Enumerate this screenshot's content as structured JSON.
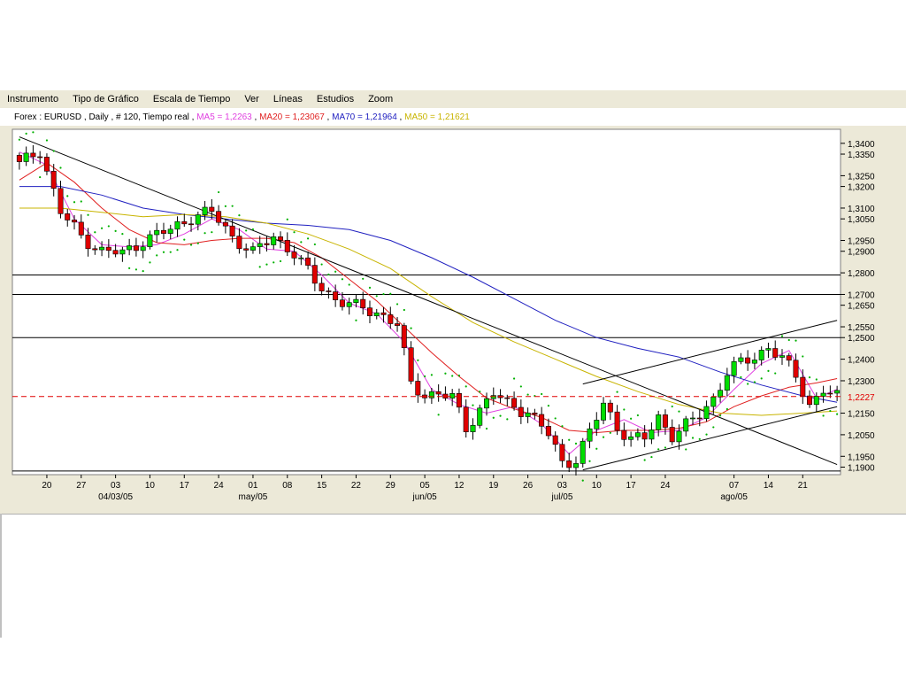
{
  "menu": [
    "Instrumento",
    "Tipo de Gráfico",
    "Escala de Tiempo",
    "Ver",
    "Líneas",
    "Estudios",
    "Zoom"
  ],
  "info": {
    "instrument": "Forex : EURUSD , Daily , # 120, Tiempo real",
    "ma5": "MA5 = 1,2263",
    "ma20": "MA20 = 1,23067",
    "ma70": "MA70 = 1,21964",
    "ma50": "MA50 = 1,21621",
    "colors": {
      "ma5": "#e040e0",
      "ma20": "#e02020",
      "ma70": "#2020c0",
      "ma50": "#c8b400"
    }
  },
  "chart_data": {
    "type": "candlestick",
    "ylim": [
      1.1865,
      1.3465
    ],
    "y_ticks": [
      "1,3400",
      "1,3350",
      "1,3250",
      "1,3200",
      "1,3100",
      "1,3050",
      "1,2950",
      "1,2900",
      "1,2800",
      "1,2700",
      "1,2650",
      "1,2550",
      "1,2500",
      "1,2400",
      "1,2300",
      "1,2150",
      "1,2050",
      "1,1950",
      "1,1900"
    ],
    "y_tick_values": [
      1.34,
      1.335,
      1.325,
      1.32,
      1.31,
      1.305,
      1.295,
      1.29,
      1.28,
      1.27,
      1.265,
      1.255,
      1.25,
      1.24,
      1.23,
      1.215,
      1.205,
      1.195,
      1.19
    ],
    "x_day_labels": [
      "20",
      "27",
      "03",
      "10",
      "17",
      "24",
      "01",
      "08",
      "15",
      "22",
      "29",
      "05",
      "12",
      "19",
      "26",
      "03",
      "10",
      "17",
      "24",
      "07",
      "14",
      "21"
    ],
    "x_day_index": [
      4,
      9,
      14,
      19,
      24,
      29,
      34,
      39,
      44,
      49,
      54,
      59,
      64,
      69,
      74,
      79,
      84,
      89,
      94,
      104,
      109,
      114
    ],
    "x_month_labels": [
      "04/03/05",
      "may/05",
      "jun/05",
      "jul/05",
      "ago/05"
    ],
    "x_month_index": [
      14,
      34,
      59,
      79,
      104
    ],
    "n_bars": 120,
    "last_price": "1,2227",
    "last_price_value": 1.2227,
    "horizontal_lines": [
      1.279,
      1.27,
      1.25,
      1.1882
    ],
    "trend_lines": [
      {
        "from": [
          0,
          1.343
        ],
        "to": [
          119,
          1.1912
        ]
      },
      {
        "from": [
          82,
          1.2285
        ],
        "to": [
          119,
          1.258
        ]
      },
      {
        "from": [
          82,
          1.1887
        ],
        "to": [
          119,
          1.218
        ]
      }
    ],
    "anchors": [
      [
        0,
        1.33
      ],
      [
        3,
        1.337
      ],
      [
        6,
        1.308
      ],
      [
        9,
        1.297
      ],
      [
        12,
        1.29
      ],
      [
        15,
        1.289
      ],
      [
        18,
        1.295
      ],
      [
        22,
        1.3
      ],
      [
        25,
        1.306
      ],
      [
        28,
        1.308
      ],
      [
        31,
        1.297
      ],
      [
        34,
        1.289
      ],
      [
        37,
        1.297
      ],
      [
        40,
        1.289
      ],
      [
        43,
        1.276
      ],
      [
        46,
        1.268
      ],
      [
        49,
        1.264
      ],
      [
        52,
        1.262
      ],
      [
        55,
        1.256
      ],
      [
        57,
        1.228
      ],
      [
        59,
        1.224
      ],
      [
        61,
        1.224
      ],
      [
        63,
        1.222
      ],
      [
        65,
        1.208
      ],
      [
        67,
        1.217
      ],
      [
        69,
        1.224
      ],
      [
        71,
        1.219
      ],
      [
        74,
        1.216
      ],
      [
        77,
        1.205
      ],
      [
        79,
        1.192
      ],
      [
        81,
        1.194
      ],
      [
        83,
        1.206
      ],
      [
        85,
        1.219
      ],
      [
        87,
        1.209
      ],
      [
        89,
        1.203
      ],
      [
        91,
        1.203
      ],
      [
        93,
        1.213
      ],
      [
        95,
        1.205
      ],
      [
        97,
        1.209
      ],
      [
        99,
        1.214
      ],
      [
        101,
        1.222
      ],
      [
        103,
        1.234
      ],
      [
        105,
        1.238
      ],
      [
        107,
        1.241
      ],
      [
        109,
        1.246
      ],
      [
        111,
        1.24
      ],
      [
        113,
        1.232
      ],
      [
        115,
        1.219
      ],
      [
        117,
        1.226
      ],
      [
        119,
        1.222
      ]
    ],
    "ma_series": [
      {
        "name": "MA5",
        "color": "#e040e0",
        "points": [
          [
            0,
            1.336
          ],
          [
            4,
            1.33
          ],
          [
            8,
            1.305
          ],
          [
            12,
            1.293
          ],
          [
            16,
            1.292
          ],
          [
            20,
            1.293
          ],
          [
            24,
            1.298
          ],
          [
            28,
            1.305
          ],
          [
            32,
            1.3
          ],
          [
            36,
            1.291
          ],
          [
            40,
            1.29
          ],
          [
            44,
            1.279
          ],
          [
            48,
            1.266
          ],
          [
            52,
            1.261
          ],
          [
            56,
            1.248
          ],
          [
            60,
            1.226
          ],
          [
            64,
            1.219
          ],
          [
            68,
            1.215
          ],
          [
            72,
            1.218
          ],
          [
            76,
            1.21
          ],
          [
            80,
            1.196
          ],
          [
            84,
            1.207
          ],
          [
            88,
            1.212
          ],
          [
            92,
            1.206
          ],
          [
            96,
            1.207
          ],
          [
            100,
            1.213
          ],
          [
            104,
            1.226
          ],
          [
            108,
            1.238
          ],
          [
            112,
            1.244
          ],
          [
            114,
            1.233
          ],
          [
            116,
            1.222
          ],
          [
            119,
            1.226
          ]
        ]
      },
      {
        "name": "MA20",
        "color": "#e02020",
        "points": [
          [
            0,
            1.323
          ],
          [
            4,
            1.331
          ],
          [
            8,
            1.322
          ],
          [
            12,
            1.31
          ],
          [
            16,
            1.3
          ],
          [
            20,
            1.294
          ],
          [
            24,
            1.293
          ],
          [
            28,
            1.295
          ],
          [
            32,
            1.296
          ],
          [
            36,
            1.296
          ],
          [
            40,
            1.294
          ],
          [
            44,
            1.287
          ],
          [
            48,
            1.277
          ],
          [
            52,
            1.267
          ],
          [
            56,
            1.255
          ],
          [
            60,
            1.243
          ],
          [
            64,
            1.232
          ],
          [
            68,
            1.222
          ],
          [
            72,
            1.217
          ],
          [
            76,
            1.213
          ],
          [
            80,
            1.207
          ],
          [
            84,
            1.206
          ],
          [
            88,
            1.207
          ],
          [
            92,
            1.207
          ],
          [
            96,
            1.208
          ],
          [
            100,
            1.211
          ],
          [
            104,
            1.218
          ],
          [
            108,
            1.223
          ],
          [
            112,
            1.227
          ],
          [
            116,
            1.229
          ],
          [
            119,
            1.231
          ]
        ]
      },
      {
        "name": "MA70",
        "color": "#2020c0",
        "points": [
          [
            0,
            1.32
          ],
          [
            6,
            1.32
          ],
          [
            12,
            1.316
          ],
          [
            18,
            1.31
          ],
          [
            24,
            1.307
          ],
          [
            30,
            1.305
          ],
          [
            36,
            1.303
          ],
          [
            42,
            1.302
          ],
          [
            48,
            1.3
          ],
          [
            54,
            1.295
          ],
          [
            60,
            1.287
          ],
          [
            66,
            1.278
          ],
          [
            72,
            1.268
          ],
          [
            78,
            1.258
          ],
          [
            84,
            1.25
          ],
          [
            90,
            1.245
          ],
          [
            96,
            1.241
          ],
          [
            102,
            1.234
          ],
          [
            108,
            1.228
          ],
          [
            114,
            1.223
          ],
          [
            119,
            1.22
          ]
        ]
      },
      {
        "name": "MA50",
        "color": "#c8b400",
        "points": [
          [
            0,
            1.31
          ],
          [
            6,
            1.31
          ],
          [
            12,
            1.308
          ],
          [
            18,
            1.306
          ],
          [
            24,
            1.307
          ],
          [
            30,
            1.306
          ],
          [
            36,
            1.303
          ],
          [
            42,
            1.298
          ],
          [
            48,
            1.291
          ],
          [
            54,
            1.282
          ],
          [
            60,
            1.269
          ],
          [
            66,
            1.257
          ],
          [
            72,
            1.248
          ],
          [
            78,
            1.24
          ],
          [
            84,
            1.232
          ],
          [
            90,
            1.225
          ],
          [
            96,
            1.219
          ],
          [
            102,
            1.215
          ],
          [
            108,
            1.214
          ],
          [
            114,
            1.215
          ],
          [
            119,
            1.216
          ]
        ]
      }
    ],
    "sar_color": "#00b000",
    "up_color": "#00dd00",
    "down_color": "#e00000",
    "grid": false
  }
}
